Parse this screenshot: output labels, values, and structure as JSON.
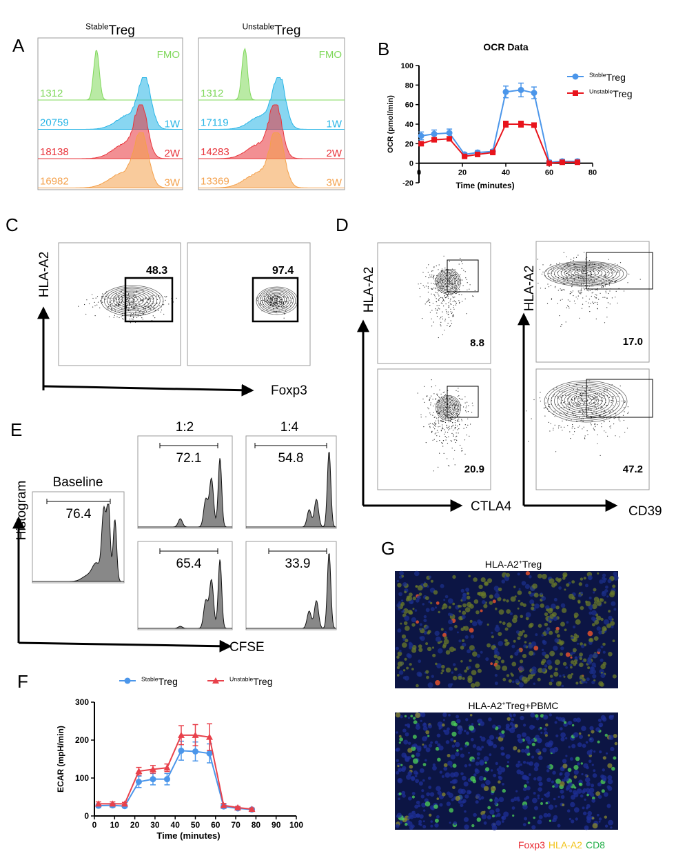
{
  "panel_letters": [
    "A",
    "B",
    "C",
    "D",
    "E",
    "F",
    "G"
  ],
  "panel_a": {
    "plots": [
      {
        "title": [
          {
            "sup": "Stable"
          },
          {
            "text": "Treg"
          }
        ],
        "rows": [
          {
            "label": "FMO",
            "value": 1312,
            "color": "#7fd85a"
          },
          {
            "label": "1W",
            "value": 20759,
            "color": "#26b4e6"
          },
          {
            "label": "2W",
            "value": 18138,
            "color": "#e8333a"
          },
          {
            "label": "3W",
            "value": 16982,
            "color": "#f4a04a"
          }
        ]
      },
      {
        "title": [
          {
            "sup": "Unstable"
          },
          {
            "text": "Treg"
          }
        ],
        "rows": [
          {
            "label": "FMO",
            "value": 1312,
            "color": "#7fd85a"
          },
          {
            "label": "1W",
            "value": 17119,
            "color": "#26b4e6"
          },
          {
            "label": "2W",
            "value": 14283,
            "color": "#e8333a"
          },
          {
            "label": "3W",
            "value": 13369,
            "color": "#f4a04a"
          }
        ]
      }
    ]
  },
  "panel_c": {
    "y_label": "HLA-A2",
    "x_label": "Foxp3",
    "gates": [
      "48.3",
      "97.4"
    ]
  },
  "panel_d": {
    "y_labels": [
      "HLA-A2",
      "HLA-A2"
    ],
    "x_labels": [
      "CTLA4",
      "CD39"
    ],
    "gates": [
      [
        "8.8",
        "20.9"
      ],
      [
        "17.0",
        "47.2"
      ]
    ]
  },
  "panel_e": {
    "y_label": "Histogram",
    "x_label": "CFSE",
    "baseline": {
      "title": "Baseline",
      "gate": "76.4"
    },
    "columns": [
      {
        "title": "1:2",
        "gates": [
          "72.1",
          "65.4"
        ]
      },
      {
        "title": "1:4",
        "gates": [
          "54.8",
          "33.9"
        ]
      }
    ]
  },
  "panel_g": {
    "images": [
      {
        "title": [
          {
            "text": "HLA-A2"
          },
          {
            "sup": "+"
          },
          {
            "text": "Treg"
          }
        ]
      },
      {
        "title": [
          {
            "text": "HLA-A2"
          },
          {
            "sup": "+"
          },
          {
            "text": "Treg+PBMC"
          }
        ]
      }
    ],
    "legend": [
      {
        "text": "Foxp3",
        "color": "#e8262e"
      },
      {
        "text": "HLA-A2",
        "color": "#f2c318"
      },
      {
        "text": "CD8",
        "color": "#25b04a"
      }
    ]
  },
  "chart_data": [
    {
      "type": "line",
      "title": "OCR Data",
      "ylabel": "OCR (pmol/min)",
      "xlabel": "Time (minutes)",
      "legend": "right",
      "x": [
        1,
        7,
        14,
        21,
        27,
        34,
        40,
        47,
        53,
        60,
        66,
        73
      ],
      "xlim": [
        0,
        80
      ],
      "xticks": [
        0,
        20,
        40,
        60,
        80
      ],
      "ylim": [
        -20,
        100
      ],
      "yticks": [
        -20,
        0,
        20,
        40,
        60,
        80,
        100
      ],
      "series": [
        {
          "name": [
            {
              "sup": "Stable"
            },
            {
              "text": "Treg"
            }
          ],
          "color": "#4b96ea",
          "marker": "circle",
          "values": [
            28,
            30,
            31,
            9,
            11,
            12,
            73,
            75,
            72,
            1,
            2,
            2
          ],
          "errors": [
            4,
            4,
            4,
            2,
            2,
            2,
            6,
            7,
            6,
            2,
            2,
            2
          ]
        },
        {
          "name": [
            {
              "sup": "Unstable"
            },
            {
              "text": "Treg"
            }
          ],
          "color": "#e8141c",
          "marker": "square",
          "values": [
            20,
            24,
            25,
            7,
            9,
            11,
            40,
            40,
            39,
            0,
            1,
            1
          ],
          "errors": [
            2,
            2,
            2,
            1,
            1,
            1,
            3,
            3,
            2,
            1,
            1,
            1
          ]
        }
      ]
    },
    {
      "type": "line",
      "ylabel": "ECAR (mpH/min)",
      "xlabel": "Time (minutes)",
      "legend": "top",
      "x": [
        2,
        9,
        15,
        22,
        29,
        36,
        43,
        50,
        57,
        64,
        71,
        78
      ],
      "xlim": [
        0,
        100
      ],
      "xticks": [
        0,
        10,
        20,
        30,
        40,
        50,
        60,
        70,
        80,
        90,
        100
      ],
      "ylim": [
        0,
        300
      ],
      "yticks": [
        0,
        100,
        200,
        300
      ],
      "series": [
        {
          "name": [
            {
              "sup": "Stable"
            },
            {
              "text": "Treg"
            }
          ],
          "color": "#4b96ea",
          "marker": "circle",
          "values": [
            27,
            28,
            26,
            90,
            97,
            97,
            172,
            170,
            165,
            25,
            20,
            17
          ],
          "errors": [
            5,
            5,
            4,
            15,
            15,
            15,
            25,
            25,
            25,
            5,
            3,
            3
          ]
        },
        {
          "name": [
            {
              "sup": "Unstable"
            },
            {
              "text": "Treg"
            }
          ],
          "color": "#e8414b",
          "marker": "triangle",
          "values": [
            32,
            32,
            32,
            118,
            123,
            127,
            213,
            213,
            208,
            28,
            22,
            18
          ],
          "errors": [
            5,
            5,
            4,
            10,
            10,
            10,
            25,
            28,
            35,
            5,
            3,
            3
          ]
        }
      ]
    }
  ]
}
